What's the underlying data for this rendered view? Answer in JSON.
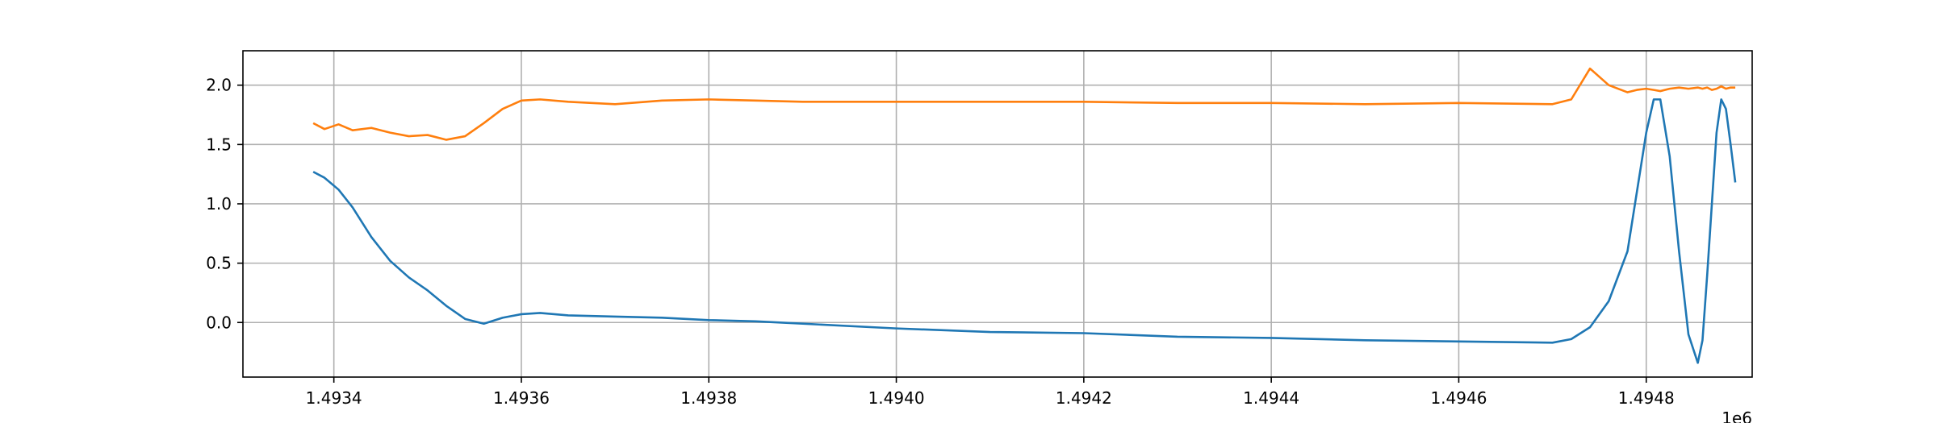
{
  "chart_data": {
    "type": "line",
    "title": "",
    "xlabel": "",
    "ylabel": "",
    "x_offset_label": "1e6",
    "xlim": [
      1493303,
      1494913
    ],
    "ylim": [
      -0.46,
      2.29
    ],
    "grid": true,
    "x_ticks": [
      1493400,
      1493600,
      1493800,
      1494000,
      1494200,
      1494400,
      1494600,
      1494800
    ],
    "x_tick_labels": [
      "1.4934",
      "1.4936",
      "1.4938",
      "1.4940",
      "1.4942",
      "1.4944",
      "1.4946",
      "1.4948"
    ],
    "y_ticks": [
      0.0,
      0.5,
      1.0,
      1.5,
      2.0
    ],
    "y_tick_labels": [
      "0.0",
      "0.5",
      "1.0",
      "1.5",
      "2.0"
    ],
    "series": [
      {
        "color": "#1f77b4",
        "x": [
          1493378,
          1493390,
          1493405,
          1493420,
          1493440,
          1493460,
          1493480,
          1493500,
          1493520,
          1493540,
          1493560,
          1493580,
          1493600,
          1493620,
          1493650,
          1493700,
          1493750,
          1493800,
          1493850,
          1493900,
          1494000,
          1494100,
          1494200,
          1494300,
          1494400,
          1494500,
          1494600,
          1494700,
          1494720,
          1494740,
          1494760,
          1494780,
          1494790,
          1494800,
          1494808,
          1494815,
          1494825,
          1494835,
          1494845,
          1494855,
          1494860,
          1494865,
          1494870,
          1494875,
          1494880,
          1494885,
          1494890,
          1494895
        ],
        "y": [
          1.27,
          1.22,
          1.12,
          0.97,
          0.72,
          0.52,
          0.38,
          0.27,
          0.14,
          0.03,
          -0.01,
          0.04,
          0.07,
          0.08,
          0.06,
          0.05,
          0.04,
          0.02,
          0.01,
          -0.01,
          -0.05,
          -0.08,
          -0.09,
          -0.12,
          -0.13,
          -0.15,
          -0.16,
          -0.17,
          -0.14,
          -0.04,
          0.18,
          0.6,
          1.1,
          1.6,
          1.88,
          1.88,
          1.4,
          0.6,
          -0.1,
          -0.34,
          -0.15,
          0.4,
          1.0,
          1.6,
          1.88,
          1.8,
          1.5,
          1.18
        ]
      },
      {
        "color": "#ff7f0e",
        "x": [
          1493378,
          1493390,
          1493405,
          1493420,
          1493440,
          1493460,
          1493480,
          1493500,
          1493520,
          1493540,
          1493560,
          1493580,
          1493600,
          1493620,
          1493650,
          1493700,
          1493750,
          1493800,
          1493850,
          1493900,
          1494000,
          1494100,
          1494200,
          1494300,
          1494400,
          1494500,
          1494600,
          1494700,
          1494720,
          1494740,
          1494760,
          1494780,
          1494790,
          1494800,
          1494808,
          1494815,
          1494825,
          1494835,
          1494845,
          1494855,
          1494860,
          1494865,
          1494870,
          1494875,
          1494880,
          1494885,
          1494890,
          1494895
        ],
        "y": [
          1.68,
          1.63,
          1.67,
          1.62,
          1.64,
          1.6,
          1.57,
          1.58,
          1.54,
          1.57,
          1.68,
          1.8,
          1.87,
          1.88,
          1.86,
          1.84,
          1.87,
          1.88,
          1.87,
          1.86,
          1.86,
          1.86,
          1.86,
          1.85,
          1.85,
          1.84,
          1.85,
          1.84,
          1.88,
          2.14,
          2.0,
          1.94,
          1.96,
          1.97,
          1.96,
          1.95,
          1.97,
          1.98,
          1.97,
          1.98,
          1.97,
          1.98,
          1.96,
          1.97,
          1.99,
          1.97,
          1.98,
          1.98
        ]
      }
    ]
  }
}
